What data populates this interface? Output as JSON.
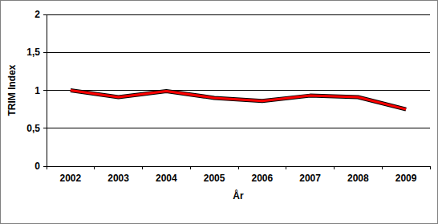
{
  "chart_data": {
    "type": "line",
    "x_label": "År",
    "y_label": "TRIM Index",
    "categories": [
      "2002",
      "2003",
      "2004",
      "2005",
      "2006",
      "2007",
      "2008",
      "2009"
    ],
    "series": [
      {
        "color": "#ff0000",
        "values": [
          1.0,
          0.91,
          0.99,
          0.9,
          0.86,
          0.93,
          0.91,
          0.75
        ]
      }
    ],
    "ylim": [
      0,
      2
    ],
    "yticks": [
      0,
      {
        "value": 0.5,
        "label": "0,5"
      },
      1,
      {
        "value": 1.5,
        "label": "1,5"
      },
      2
    ],
    "grid": true
  }
}
